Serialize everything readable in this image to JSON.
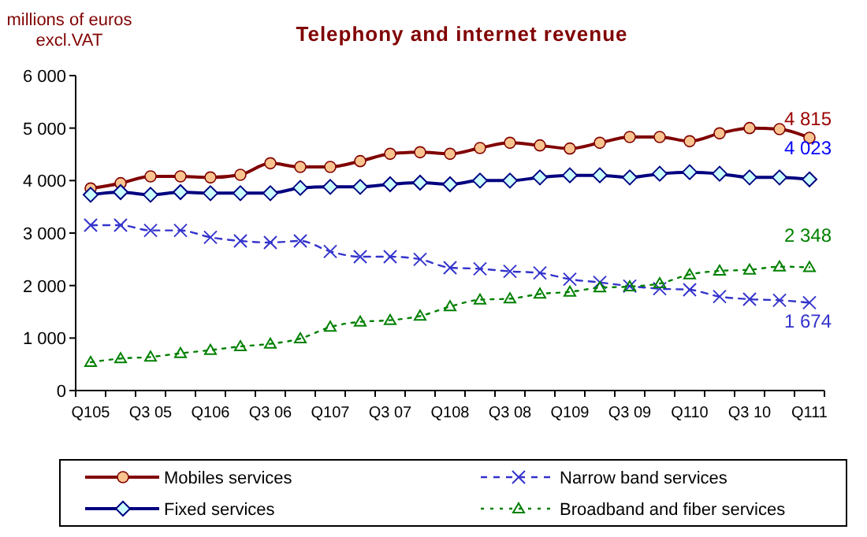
{
  "chart_data": {
    "type": "line",
    "title": "Telephony and internet revenue",
    "ylabel": "millions of euros\nexcl.VAT",
    "categories": [
      "Q105",
      null,
      "Q3 05",
      null,
      "Q106",
      null,
      "Q3 06",
      null,
      "Q107",
      null,
      "Q3 07",
      null,
      "Q108",
      null,
      "Q3 08",
      null,
      "Q109",
      null,
      "Q3 09",
      null,
      "Q110",
      null,
      "Q3 10",
      null,
      "Q111"
    ],
    "ylim": [
      0,
      6000
    ],
    "yticks": [
      {
        "value": 0,
        "label": "0"
      },
      {
        "value": 1000,
        "label": "1 000"
      },
      {
        "value": 2000,
        "label": "2 000"
      },
      {
        "value": 3000,
        "label": "3 000"
      },
      {
        "value": 4000,
        "label": "4 000"
      },
      {
        "value": 5000,
        "label": "5 000"
      },
      {
        "value": 6000,
        "label": "6 000"
      }
    ],
    "grid": false,
    "legend": "bottom",
    "series": [
      {
        "name": "Mobiles services",
        "color": "#800000",
        "marker": "circle",
        "line_style": "solid",
        "values": [
          3850,
          3950,
          4080,
          4080,
          4060,
          4110,
          4330,
          4260,
          4260,
          4370,
          4510,
          4540,
          4510,
          4620,
          4720,
          4670,
          4610,
          4720,
          4830,
          4830,
          4750,
          4900,
          5000,
          4980,
          4815
        ],
        "value_labels": [
          null,
          null,
          null,
          null,
          null,
          null,
          null,
          null,
          null,
          null,
          null,
          null,
          null,
          null,
          null,
          null,
          null,
          null,
          null,
          null,
          null,
          null,
          null,
          null,
          "4 815"
        ]
      },
      {
        "name": "Narrow band services",
        "color": "#3333cc",
        "marker": "cross",
        "line_style": "dashed",
        "values": [
          3150,
          3150,
          3050,
          3050,
          2920,
          2850,
          2820,
          2850,
          2650,
          2550,
          2550,
          2500,
          2340,
          2320,
          2270,
          2240,
          2120,
          2060,
          1990,
          1940,
          1920,
          1790,
          1740,
          1720,
          1674
        ],
        "value_labels": [
          null,
          null,
          null,
          null,
          null,
          null,
          null,
          null,
          null,
          null,
          null,
          null,
          null,
          null,
          null,
          null,
          null,
          null,
          null,
          null,
          null,
          null,
          null,
          null,
          "1 674"
        ]
      },
      {
        "name": "Fixed services",
        "color": "#000080",
        "marker": "diamond",
        "line_style": "solid",
        "values": [
          3730,
          3780,
          3730,
          3780,
          3760,
          3760,
          3760,
          3860,
          3880,
          3880,
          3930,
          3960,
          3930,
          4000,
          4000,
          4060,
          4100,
          4100,
          4060,
          4130,
          4160,
          4130,
          4060,
          4060,
          4023
        ],
        "value_labels": [
          null,
          null,
          null,
          null,
          null,
          null,
          null,
          null,
          null,
          null,
          null,
          null,
          null,
          null,
          null,
          null,
          null,
          null,
          null,
          null,
          null,
          null,
          null,
          null,
          "4 023"
        ]
      },
      {
        "name": "Broadband and fiber services",
        "color": "#008000",
        "marker": "triangle",
        "line_style": "dotted",
        "values": [
          540,
          610,
          640,
          710,
          770,
          840,
          890,
          990,
          1210,
          1310,
          1340,
          1420,
          1600,
          1730,
          1750,
          1840,
          1880,
          1960,
          1980,
          2040,
          2210,
          2280,
          2300,
          2360,
          2348
        ],
        "value_labels": [
          null,
          null,
          null,
          null,
          null,
          null,
          null,
          null,
          null,
          null,
          null,
          null,
          null,
          null,
          null,
          null,
          null,
          null,
          null,
          null,
          null,
          null,
          null,
          null,
          "2 348"
        ]
      }
    ]
  }
}
